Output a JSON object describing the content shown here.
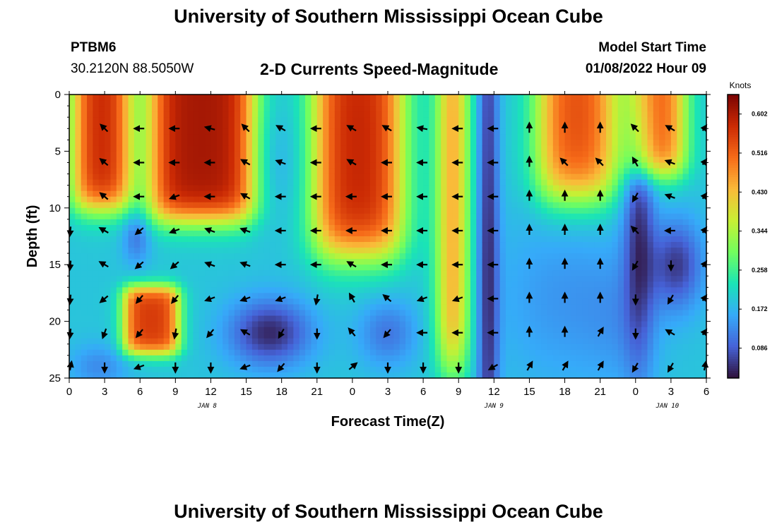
{
  "header": {
    "title": "University of Southern Mississippi Ocean Cube",
    "station": "PTBM6",
    "coords": "30.2120N  88.5050W",
    "subtitle": "2-D Currents Speed-Magnitude",
    "model_label": "Model Start Time",
    "model_time": "01/08/2022 Hour 09"
  },
  "footer": {
    "title": "University of Southern Mississippi Ocean Cube"
  },
  "chart_data": {
    "type": "heatmap",
    "title": "2-D Currents Speed-Magnitude",
    "xlabel": "Forecast Time(Z)",
    "ylabel": "Depth (ft)",
    "x_tick_labels": [
      "0",
      "3",
      "6",
      "9",
      "12",
      "15",
      "18",
      "21",
      "0",
      "3",
      "6",
      "9",
      "12",
      "15",
      "18",
      "21",
      "0",
      "3",
      "6"
    ],
    "x_range_hours": [
      0,
      54
    ],
    "y_ticks": [
      0,
      5,
      10,
      15,
      20,
      25
    ],
    "ylim": [
      0,
      25
    ],
    "y_inverted": true,
    "day_labels": [
      {
        "label": "JAN 8",
        "hour": 11.7
      },
      {
        "label": "JAN 9",
        "hour": 36.0
      },
      {
        "label": "JAN 10",
        "hour": 50.7
      }
    ],
    "colorbar": {
      "unit": "Knots",
      "ticks": [
        "0.602",
        "0.516",
        "0.430",
        "0.344",
        "0.258",
        "0.172",
        "0.086"
      ],
      "tick_values": [
        0.602,
        0.516,
        0.43,
        0.344,
        0.258,
        0.172,
        0.086
      ],
      "range": [
        0.02,
        0.645
      ],
      "colormap": "turbo",
      "colormap_stops": [
        "#30123b",
        "#4662d7",
        "#36aaf9",
        "#1ae4b6",
        "#72fe5e",
        "#c8ef34",
        "#faba39",
        "#f66b19",
        "#cb2a04",
        "#7a0403"
      ]
    },
    "arrow_hours": [
      0,
      3,
      6,
      9,
      12,
      15,
      18,
      21,
      24,
      27,
      30,
      33,
      36,
      39,
      42,
      45,
      48,
      51,
      54
    ],
    "arrow_depths": [
      3,
      6,
      9,
      12,
      15,
      18,
      21,
      24
    ],
    "arrow_angles_deg": [
      [
        null,
        135,
        180,
        180,
        165,
        135,
        150,
        180,
        150,
        150,
        170,
        180,
        180,
        90,
        90,
        90,
        135,
        150,
        30
      ],
      [
        null,
        140,
        180,
        180,
        180,
        150,
        160,
        180,
        150,
        180,
        180,
        180,
        180,
        90,
        135,
        135,
        120,
        160,
        30
      ],
      [
        null,
        140,
        180,
        200,
        180,
        150,
        180,
        180,
        180,
        180,
        180,
        180,
        180,
        90,
        90,
        90,
        240,
        160,
        30
      ],
      [
        250,
        150,
        220,
        200,
        160,
        160,
        180,
        180,
        180,
        180,
        180,
        180,
        180,
        90,
        90,
        90,
        135,
        180,
        30
      ],
      [
        250,
        150,
        220,
        220,
        160,
        160,
        180,
        180,
        150,
        180,
        180,
        180,
        180,
        90,
        90,
        90,
        240,
        270,
        30
      ],
      [
        250,
        220,
        230,
        230,
        200,
        200,
        200,
        260,
        120,
        140,
        200,
        200,
        180,
        90,
        90,
        90,
        270,
        240,
        30
      ],
      [
        250,
        250,
        230,
        260,
        230,
        150,
        240,
        270,
        130,
        230,
        180,
        180,
        180,
        90,
        90,
        60,
        270,
        150,
        30
      ],
      [
        60,
        270,
        200,
        270,
        270,
        200,
        230,
        270,
        40,
        270,
        270,
        270,
        210,
        60,
        60,
        60,
        240,
        240,
        60
      ]
    ]
  }
}
